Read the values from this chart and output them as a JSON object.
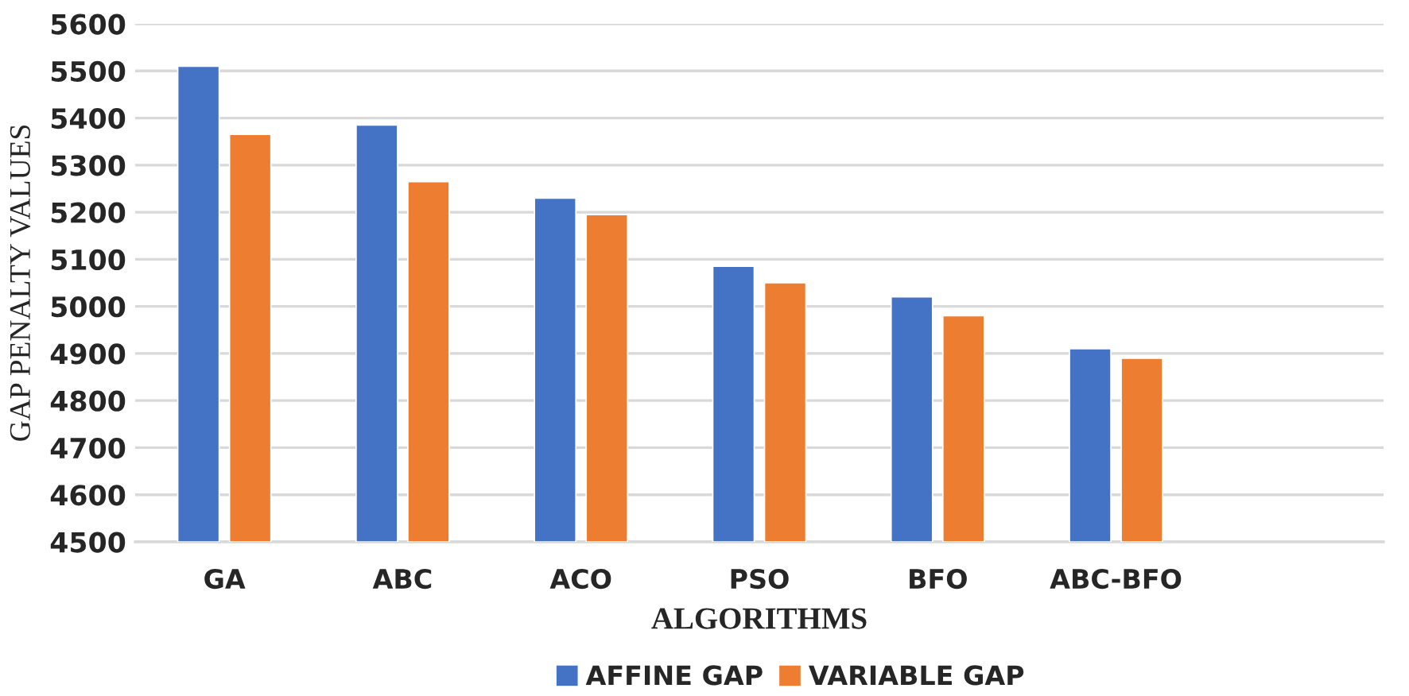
{
  "chart_data": {
    "type": "bar",
    "xlabel": "ALGORITHMS",
    "ylabel": "GAP PENALTY VALUES",
    "categories": [
      "GA",
      "ABC",
      "ACO",
      "PSO",
      "BFO",
      "ABC-BFO",
      null
    ],
    "series": [
      {
        "name": "AFFINE GAP",
        "color": "#4472c4",
        "values": [
          5510,
          5385,
          5230,
          5085,
          5020,
          4910,
          null
        ]
      },
      {
        "name": "VARIABLE GAP",
        "color": "#ed7d31",
        "values": [
          5365,
          5265,
          5195,
          5050,
          4980,
          4890,
          null
        ]
      }
    ],
    "ylim": [
      4500,
      5600
    ],
    "yticks": [
      4500,
      4600,
      4700,
      4800,
      4900,
      5000,
      5100,
      5200,
      5300,
      5400,
      5500,
      5600
    ],
    "grid": "y",
    "legend": "bottom"
  }
}
